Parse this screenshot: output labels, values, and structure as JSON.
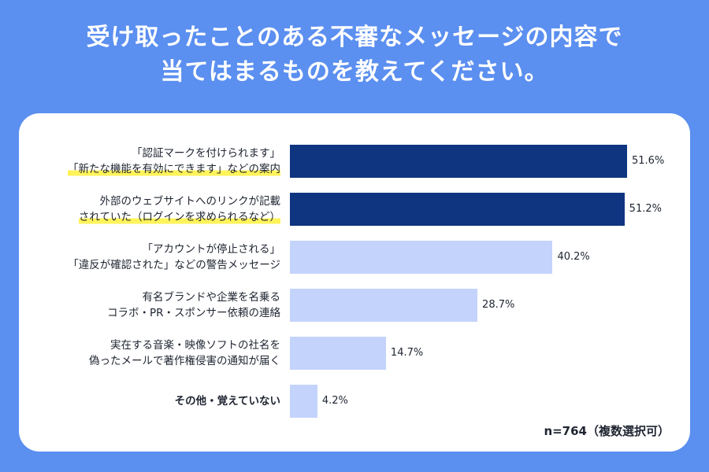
{
  "title": {
    "line1": "受け取ったことのある不審なメッセージの内容で",
    "line2": "当てはまるものを教えてください。"
  },
  "colors": {
    "background": "#5b8ff0",
    "bar_dark": "#0f3580",
    "bar_light": "#c4d3fb",
    "highlight": "#fff35a"
  },
  "chart_data": {
    "type": "bar",
    "orientation": "horizontal",
    "categories": [
      [
        "「認証マークを付けられます」",
        "「新たな機能を有効にできます」などの案内"
      ],
      [
        "外部のウェブサイトへのリンクが記載",
        "されていた（ログインを求められるなど）"
      ],
      [
        "「アカウントが停止される」",
        "「違反が確認された」などの警告メッセージ"
      ],
      [
        "有名ブランドや企業を名乗る",
        "コラボ・PR・スポンサー依頼の連絡"
      ],
      [
        "実在する音楽・映像ソフトの社名を",
        "偽ったメールで著作権侵害の通知が届く"
      ],
      [
        "その他・覚えていない"
      ]
    ],
    "values": [
      51.6,
      51.2,
      40.2,
      28.7,
      14.7,
      4.2
    ],
    "value_labels": [
      "51.6%",
      "51.2%",
      "40.2%",
      "28.7%",
      "14.7%",
      "4.2%"
    ],
    "highlighted": [
      true,
      true,
      false,
      false,
      false,
      false
    ],
    "xlim": [
      0,
      55
    ],
    "note": "n=764（複数選択可）"
  }
}
